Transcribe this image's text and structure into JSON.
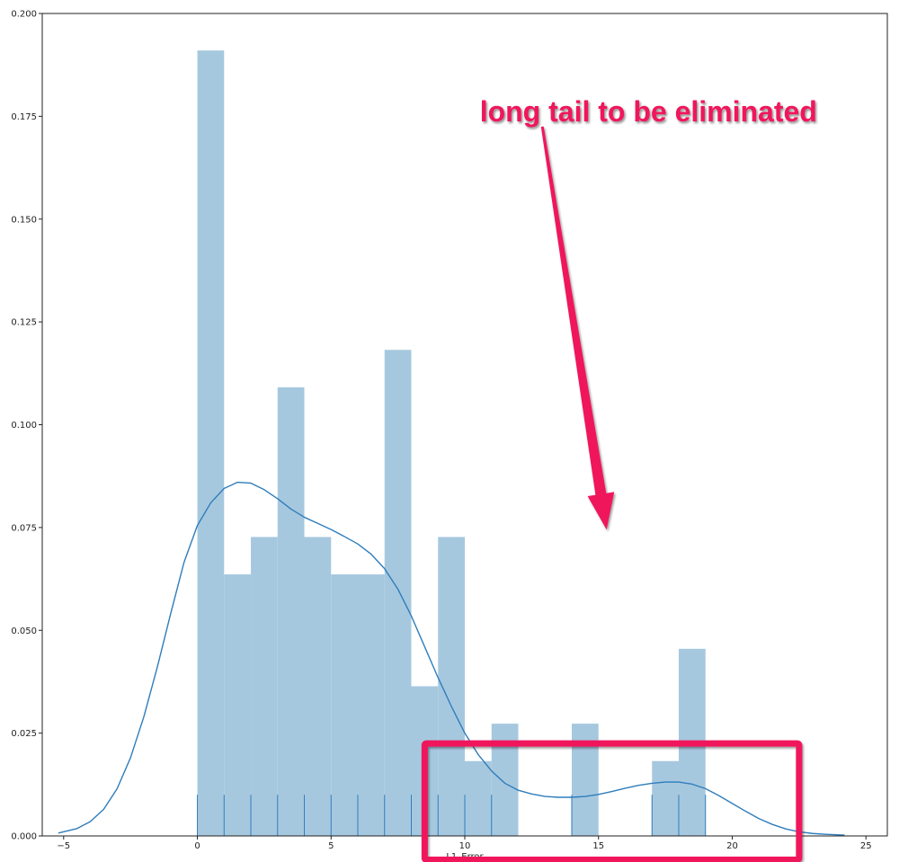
{
  "chart_data": {
    "type": "bar",
    "title": "",
    "xlabel": "L1_Error",
    "ylabel": "",
    "xlim": [
      -5.8,
      25.8
    ],
    "ylim": [
      0,
      0.2
    ],
    "x_ticks": [
      -5,
      0,
      5,
      10,
      15,
      20,
      25
    ],
    "x_tick_labels": [
      "−5",
      "0",
      "5",
      "10",
      "15",
      "20",
      "25"
    ],
    "y_ticks": [
      0,
      0.025,
      0.05,
      0.075,
      0.1,
      0.125,
      0.15,
      0.175,
      0.2
    ],
    "y_tick_labels": [
      "0.000",
      "0.025",
      "0.050",
      "0.075",
      "0.100",
      "0.125",
      "0.150",
      "0.175",
      "0.200"
    ],
    "grid": false,
    "histogram": {
      "bin_width": 1,
      "bins": [
        {
          "x0": 0,
          "x1": 1,
          "density": 0.191
        },
        {
          "x0": 1,
          "x1": 2,
          "density": 0.0636
        },
        {
          "x0": 2,
          "x1": 3,
          "density": 0.0727
        },
        {
          "x0": 3,
          "x1": 4,
          "density": 0.1091
        },
        {
          "x0": 4,
          "x1": 5,
          "density": 0.0727
        },
        {
          "x0": 5,
          "x1": 6,
          "density": 0.0636
        },
        {
          "x0": 6,
          "x1": 7,
          "density": 0.0636
        },
        {
          "x0": 7,
          "x1": 8,
          "density": 0.1182
        },
        {
          "x0": 8,
          "x1": 9,
          "density": 0.0364
        },
        {
          "x0": 9,
          "x1": 10,
          "density": 0.0727
        },
        {
          "x0": 10,
          "x1": 11,
          "density": 0.0182
        },
        {
          "x0": 11,
          "x1": 12,
          "density": 0.0273
        },
        {
          "x0": 12,
          "x1": 13,
          "density": 0
        },
        {
          "x0": 13,
          "x1": 14,
          "density": 0
        },
        {
          "x0": 14,
          "x1": 15,
          "density": 0.0273
        },
        {
          "x0": 15,
          "x1": 16,
          "density": 0
        },
        {
          "x0": 16,
          "x1": 17,
          "density": 0
        },
        {
          "x0": 17,
          "x1": 18,
          "density": 0.0182
        },
        {
          "x0": 18,
          "x1": 19,
          "density": 0.0455
        }
      ],
      "color": "#a6c8df"
    },
    "kde": {
      "color": "#2f7dbb",
      "x": [
        -5.2,
        -4.5,
        -4,
        -3.5,
        -3,
        -2.5,
        -2,
        -1.5,
        -1,
        -0.5,
        0,
        0.5,
        1,
        1.5,
        2,
        2.5,
        3,
        3.5,
        4,
        4.5,
        5,
        5.5,
        6,
        6.5,
        7,
        7.5,
        8,
        8.5,
        9,
        9.5,
        10,
        10.5,
        11,
        11.5,
        12,
        12.5,
        13,
        13.5,
        14,
        14.5,
        15,
        15.5,
        16,
        16.5,
        17,
        17.5,
        18,
        18.5,
        19,
        19.5,
        20,
        20.5,
        21,
        21.5,
        22,
        22.5,
        23,
        23.5,
        24.2
      ],
      "y": [
        0.0007,
        0.0018,
        0.0035,
        0.0065,
        0.0115,
        0.019,
        0.029,
        0.041,
        0.054,
        0.0665,
        0.0755,
        0.081,
        0.0845,
        0.086,
        0.0858,
        0.0842,
        0.082,
        0.0795,
        0.0775,
        0.076,
        0.0745,
        0.0728,
        0.071,
        0.0685,
        0.065,
        0.06,
        0.0535,
        0.046,
        0.0385,
        0.0315,
        0.025,
        0.0198,
        0.0158,
        0.0128,
        0.0111,
        0.0102,
        0.0096,
        0.0094,
        0.0094,
        0.0096,
        0.0101,
        0.0108,
        0.0116,
        0.0123,
        0.0128,
        0.0131,
        0.0131,
        0.0126,
        0.0115,
        0.0098,
        0.0079,
        0.006,
        0.0042,
        0.0028,
        0.0017,
        0.001,
        0.0006,
        0.0004,
        0.0002
      ]
    },
    "rug": {
      "color": "#2f7dbb",
      "height": 0.01,
      "x": [
        0,
        1,
        2,
        3,
        4,
        5,
        6,
        7,
        8,
        9,
        10,
        11,
        14,
        17,
        18,
        19
      ]
    },
    "annotation": {
      "text": "long tail to be eliminated",
      "text_color": "#f0135b",
      "arrow_color": "#f0135b",
      "box_color": "#f0135b",
      "arrow_from": [
        12.9,
        0.1725
      ],
      "arrow_to": [
        15.3,
        0.0745
      ],
      "box_x": [
        8.5,
        22.5
      ],
      "box_y": [
        -0.0058,
        0.0225
      ]
    }
  }
}
